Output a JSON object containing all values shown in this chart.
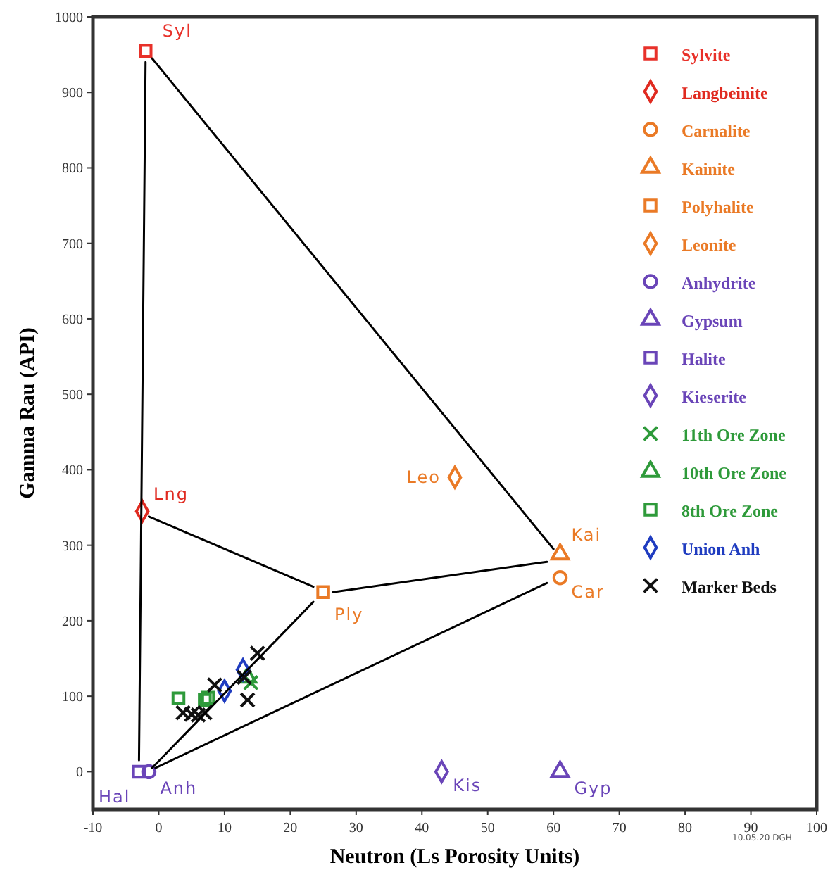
{
  "chart_data": {
    "type": "scatter",
    "xlabel": "Neutron (Ls Porosity Units)",
    "ylabel": "Gamma Rau (API)",
    "xlim": [
      -10,
      100
    ],
    "xticks": [
      -10,
      0,
      10,
      20,
      30,
      40,
      50,
      60,
      70,
      80,
      90,
      100
    ],
    "ylim": [
      -50,
      1000
    ],
    "yticks": [
      0,
      100,
      200,
      300,
      400,
      500,
      600,
      700,
      800,
      900,
      1000
    ],
    "grid": false,
    "legend": "top right",
    "series": [
      {
        "name": "Sylvite",
        "color": "#e8312a",
        "marker": "square",
        "x": [
          -2
        ],
        "values": [
          955
        ]
      },
      {
        "name": "Langbeinite",
        "color": "#e02a20",
        "marker": "diamond",
        "x": [
          -2.5
        ],
        "values": [
          345
        ]
      },
      {
        "name": "Carnalite",
        "color": "#ea7a26",
        "marker": "circle",
        "x": [
          61
        ],
        "values": [
          257
        ]
      },
      {
        "name": "Kainite",
        "color": "#ea7a26",
        "marker": "triangle",
        "x": [
          61
        ],
        "values": [
          288
        ]
      },
      {
        "name": "Polyhalite",
        "color": "#ea7a26",
        "marker": "square",
        "x": [
          25
        ],
        "values": [
          238
        ]
      },
      {
        "name": "Leonite",
        "color": "#ea7a26",
        "marker": "diamond",
        "x": [
          45
        ],
        "values": [
          390
        ]
      },
      {
        "name": "Anhydrite",
        "color": "#6a45b8",
        "marker": "circle",
        "x": [
          -1.5
        ],
        "values": [
          0
        ]
      },
      {
        "name": "Gypsum",
        "color": "#6a45b8",
        "marker": "triangle",
        "x": [
          61
        ],
        "values": [
          0
        ]
      },
      {
        "name": "Halite",
        "color": "#6a45b8",
        "marker": "square",
        "x": [
          -3
        ],
        "values": [
          0
        ]
      },
      {
        "name": "Kieserite",
        "color": "#6a45b8",
        "marker": "diamond",
        "x": [
          43
        ],
        "values": [
          0
        ]
      },
      {
        "name": "11th Ore Zone",
        "color": "#2e9a3a",
        "marker": "cross",
        "x": [
          14
        ],
        "values": [
          118
        ]
      },
      {
        "name": "10th Ore Zone",
        "color": "#2e9a3a",
        "marker": "triangle",
        "x": [
          13.5
        ],
        "values": [
          125
        ]
      },
      {
        "name": "8th Ore Zone",
        "color": "#2e9a3a",
        "marker": "square",
        "x": [
          3,
          7,
          7.5
        ],
        "values": [
          97,
          95,
          98
        ]
      },
      {
        "name": "Union Anh",
        "color": "#1f3cc0",
        "marker": "diamond",
        "x": [
          10,
          12.8
        ],
        "values": [
          107,
          135
        ]
      },
      {
        "name": "Marker Beds",
        "color": "#111111",
        "marker": "cross",
        "x": [
          3.7,
          5,
          6,
          7,
          8.5,
          13,
          13.5,
          15
        ],
        "values": [
          78,
          76,
          75,
          78,
          115,
          125,
          95,
          157
        ]
      },
      {
        "type": "line",
        "color": "#000000",
        "marker": "none",
        "x": [
          -2,
          -3
        ],
        "values": [
          940,
          15
        ]
      },
      {
        "type": "line",
        "color": "#000000",
        "marker": "none",
        "x": [
          -1,
          60
        ],
        "values": [
          945,
          295
        ]
      },
      {
        "type": "line",
        "color": "#000000",
        "marker": "none",
        "x": [
          -1.5,
          23.5
        ],
        "values": [
          338,
          245
        ]
      },
      {
        "type": "line",
        "color": "#000000",
        "marker": "none",
        "x": [
          26.5,
          59
        ],
        "values": [
          238,
          278
        ]
      },
      {
        "type": "line",
        "color": "#000000",
        "marker": "none",
        "x": [
          -1,
          23.5
        ],
        "values": [
          5,
          225
        ]
      },
      {
        "type": "line",
        "color": "#000000",
        "marker": "none",
        "x": [
          -0.5,
          59
        ],
        "values": [
          5,
          250
        ]
      }
    ],
    "annotations": [
      {
        "text": "Syl",
        "x": -2,
        "y": 955
      },
      {
        "text": "Lng",
        "x": -2.5,
        "y": 345
      },
      {
        "text": "Leo",
        "x": 45,
        "y": 390
      },
      {
        "text": "Kai",
        "x": 61,
        "y": 288
      },
      {
        "text": "Car",
        "x": 61,
        "y": 257
      },
      {
        "text": "Ply",
        "x": 25,
        "y": 238
      },
      {
        "text": "Hal",
        "x": -3,
        "y": 0
      },
      {
        "text": "Anh",
        "x": -1.5,
        "y": 0
      },
      {
        "text": "Kis",
        "x": 43,
        "y": 0
      },
      {
        "text": "Gyp",
        "x": 61,
        "y": 0
      },
      "10.05.20 DGH"
    ]
  }
}
